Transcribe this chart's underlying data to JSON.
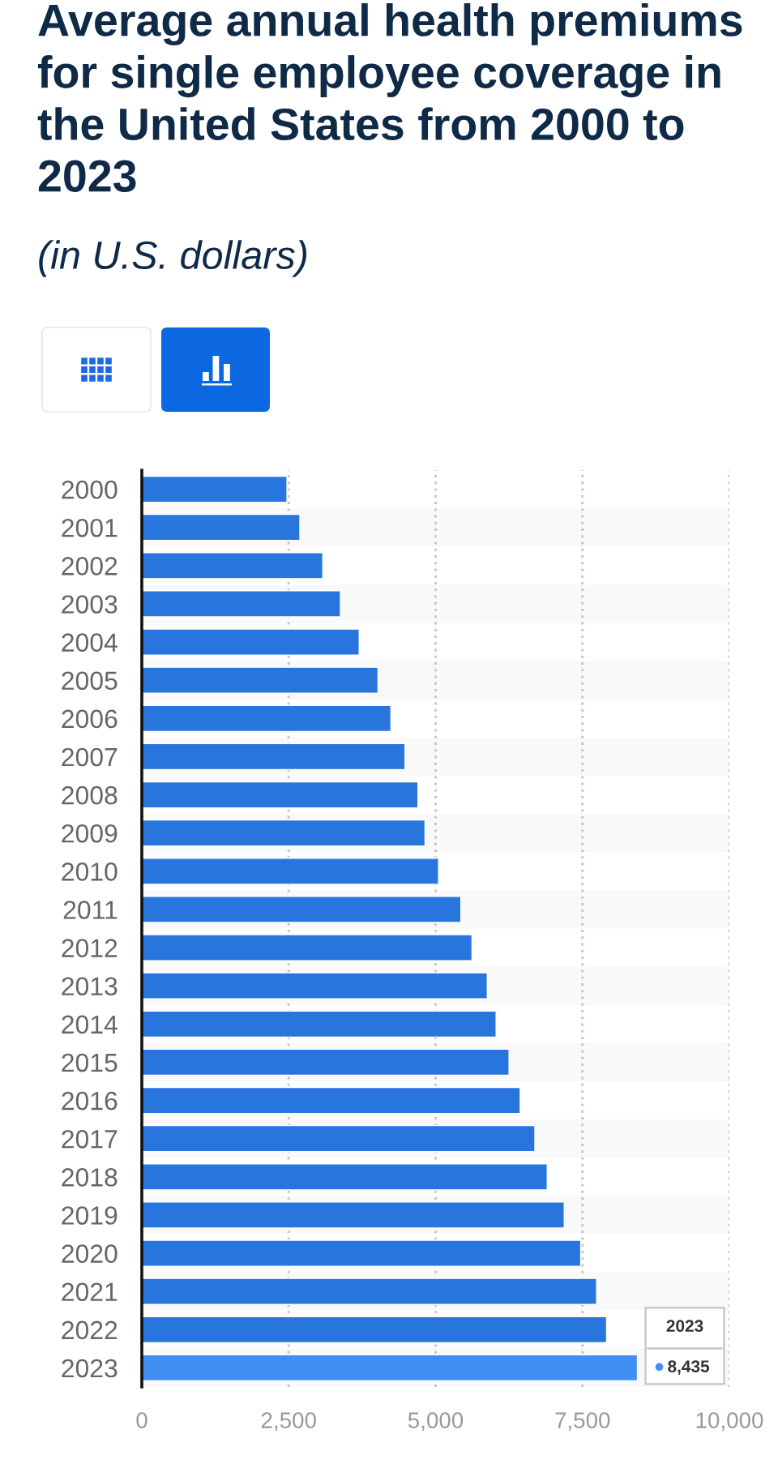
{
  "chart_data": {
    "type": "bar",
    "orientation": "horizontal",
    "title": "Average annual health premiums for single employee coverage in the United States from 2000 to 2023",
    "subtitle": "(in U.S. dollars)",
    "categories": [
      "2000",
      "2001",
      "2002",
      "2003",
      "2004",
      "2005",
      "2006",
      "2007",
      "2008",
      "2009",
      "2010",
      "2011",
      "2012",
      "2013",
      "2014",
      "2015",
      "2016",
      "2017",
      "2018",
      "2019",
      "2020",
      "2021",
      "2022",
      "2023"
    ],
    "values": [
      2470,
      2690,
      3080,
      3380,
      3700,
      4020,
      4240,
      4480,
      4700,
      4820,
      5050,
      5430,
      5620,
      5880,
      6030,
      6250,
      6440,
      6690,
      6900,
      7190,
      7470,
      7740,
      7910,
      8435
    ],
    "colors": [
      "#2876dd",
      "#2876dd",
      "#2876dd",
      "#2876dd",
      "#2876dd",
      "#2876dd",
      "#2876dd",
      "#2876dd",
      "#2876dd",
      "#2876dd",
      "#2876dd",
      "#2876dd",
      "#2876dd",
      "#2876dd",
      "#2876dd",
      "#2876dd",
      "#2876dd",
      "#2876dd",
      "#2876dd",
      "#2876dd",
      "#2876dd",
      "#2876dd",
      "#2876dd",
      "#418ef2"
    ],
    "value_labels": [
      null,
      null,
      null,
      null,
      null,
      null,
      null,
      null,
      null,
      null,
      null,
      null,
      null,
      null,
      null,
      null,
      null,
      null,
      null,
      null,
      null,
      null,
      null,
      "8,435"
    ],
    "xlim": [
      0,
      10000
    ],
    "xticks": [
      0,
      {
        "value": 2500,
        "label": "2,500"
      },
      {
        "value": 5000,
        "label": "5,000"
      },
      {
        "value": 7500,
        "label": "7,500"
      },
      {
        "value": 10000,
        "label": "10,000"
      }
    ],
    "grid": "x",
    "annotations": [
      "2023"
    ]
  }
}
